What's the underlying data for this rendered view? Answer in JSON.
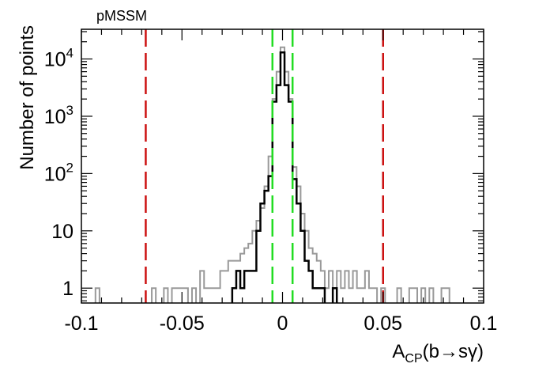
{
  "chart_data": {
    "type": "histogram",
    "annotation": "pMSSM",
    "xlabel": {
      "main": "A",
      "sub": "CP",
      "rest": "(b→sγ)"
    },
    "ylabel": "Number of points",
    "xlim": [
      -0.1,
      0.1
    ],
    "ylim": [
      0.55,
      33000
    ],
    "yscale": "log",
    "x_ticks": [
      -0.1,
      -0.05,
      0,
      0.05,
      0.1
    ],
    "x_tick_labels": [
      "-0.1",
      "-0.05",
      "0",
      "0.05",
      "0.1"
    ],
    "y_ticks": [
      1,
      10,
      100,
      1000,
      10000
    ],
    "y_tick_labels": [
      {
        "base": "1",
        "exp": ""
      },
      {
        "base": "10",
        "exp": ""
      },
      {
        "base": "10",
        "exp": "2"
      },
      {
        "base": "10",
        "exp": "3"
      },
      {
        "base": "10",
        "exp": "4"
      }
    ],
    "bin_width": 0.002,
    "series": [
      {
        "color": "#999999",
        "bins": [
          [
            -0.092,
            1
          ],
          [
            -0.064,
            1
          ],
          [
            -0.058,
            1
          ],
          [
            -0.054,
            1
          ],
          [
            -0.052,
            1
          ],
          [
            -0.05,
            1
          ],
          [
            -0.048,
            1
          ],
          [
            -0.044,
            1
          ],
          [
            -0.04,
            2
          ],
          [
            -0.038,
            1
          ],
          [
            -0.036,
            1
          ],
          [
            -0.034,
            1
          ],
          [
            -0.032,
            1
          ],
          [
            -0.03,
            2
          ],
          [
            -0.028,
            2
          ],
          [
            -0.026,
            3
          ],
          [
            -0.024,
            3
          ],
          [
            -0.022,
            3
          ],
          [
            -0.02,
            4
          ],
          [
            -0.018,
            5
          ],
          [
            -0.016,
            6
          ],
          [
            -0.014,
            10
          ],
          [
            -0.012,
            15
          ],
          [
            -0.01,
            25
          ],
          [
            -0.008,
            60
          ],
          [
            -0.006,
            200
          ],
          [
            -0.004,
            2000
          ],
          [
            -0.002,
            6000
          ],
          [
            0,
            16000
          ],
          [
            0.002,
            6000
          ],
          [
            0.004,
            2000
          ],
          [
            0.006,
            130
          ],
          [
            0.008,
            60
          ],
          [
            0.01,
            20
          ],
          [
            0.012,
            10
          ],
          [
            0.014,
            5
          ],
          [
            0.016,
            4
          ],
          [
            0.018,
            3
          ],
          [
            0.02,
            2
          ],
          [
            0.022,
            1
          ],
          [
            0.024,
            2
          ],
          [
            0.026,
            1
          ],
          [
            0.028,
            2
          ],
          [
            0.03,
            1
          ],
          [
            0.032,
            2
          ],
          [
            0.034,
            1
          ],
          [
            0.036,
            2
          ],
          [
            0.038,
            1
          ],
          [
            0.04,
            1
          ],
          [
            0.042,
            2
          ],
          [
            0.044,
            1
          ],
          [
            0.046,
            1
          ],
          [
            0.05,
            1
          ],
          [
            0.058,
            1
          ],
          [
            0.064,
            1
          ],
          [
            0.066,
            1
          ],
          [
            0.07,
            1
          ],
          [
            0.074,
            1
          ],
          [
            0.08,
            1
          ],
          [
            0.082,
            1
          ]
        ]
      },
      {
        "color": "#000000",
        "bins": [
          [
            -0.024,
            1
          ],
          [
            -0.022,
            2
          ],
          [
            -0.02,
            1
          ],
          [
            -0.018,
            2
          ],
          [
            -0.016,
            2
          ],
          [
            -0.014,
            2
          ],
          [
            -0.012,
            10
          ],
          [
            -0.01,
            30
          ],
          [
            -0.008,
            50
          ],
          [
            -0.006,
            90
          ],
          [
            -0.004,
            1800
          ],
          [
            -0.002,
            3500
          ],
          [
            0,
            13000
          ],
          [
            0.002,
            3500
          ],
          [
            0.004,
            1800
          ],
          [
            0.006,
            80
          ],
          [
            0.008,
            30
          ],
          [
            0.01,
            10
          ],
          [
            0.012,
            3
          ],
          [
            0.014,
            2
          ],
          [
            0.016,
            1
          ],
          [
            0.018,
            1
          ],
          [
            0.02,
            1
          ],
          [
            0.026,
            1
          ]
        ]
      }
    ],
    "vertical_lines": [
      {
        "x": -0.068,
        "color": "#cc1111"
      },
      {
        "x": 0.05,
        "color": "#cc1111"
      },
      {
        "x": -0.005,
        "color": "#22dd22"
      },
      {
        "x": 0.005,
        "color": "#22dd22"
      }
    ]
  }
}
